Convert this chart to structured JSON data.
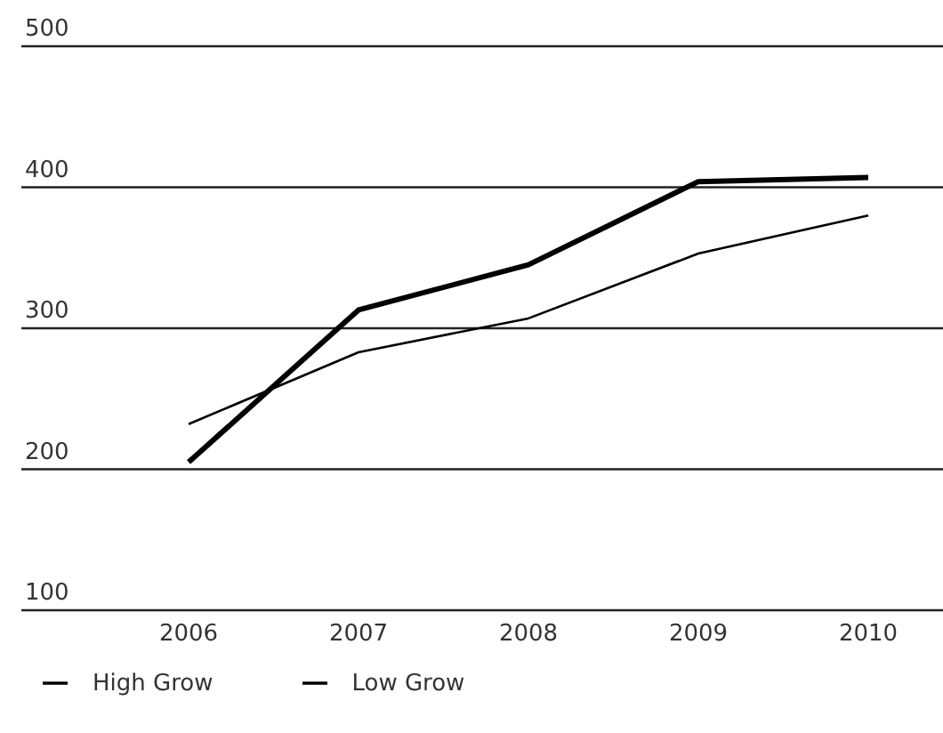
{
  "chart_data": {
    "type": "line",
    "categories": [
      "2006",
      "2007",
      "2008",
      "2009",
      "2010"
    ],
    "series": [
      {
        "name": "High Grow",
        "color": "#000000",
        "values": [
          232,
          283,
          307,
          353,
          380
        ]
      },
      {
        "name": "Low Grow",
        "color": "#000000",
        "values": [
          205,
          313,
          345,
          404,
          407
        ]
      }
    ],
    "ylim": [
      100,
      500
    ],
    "yticks": [
      100,
      200,
      300,
      400,
      500
    ],
    "grid": "y",
    "legend": "bottom",
    "marker": "none",
    "line_style": "solid"
  }
}
